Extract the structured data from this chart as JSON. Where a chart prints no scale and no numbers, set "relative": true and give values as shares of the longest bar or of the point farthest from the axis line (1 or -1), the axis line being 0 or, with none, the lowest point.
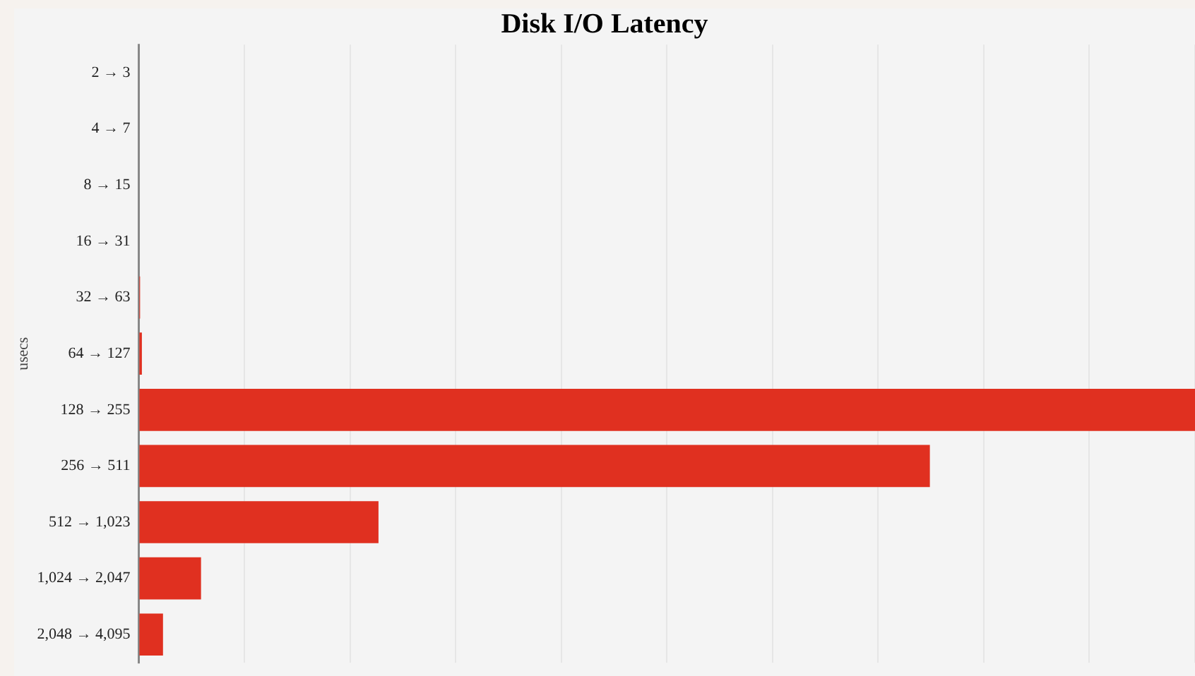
{
  "chart_data": {
    "type": "bar",
    "title": "Disk I/O Latency",
    "ylabel": "usecs",
    "orientation": "horizontal",
    "relative": true,
    "grid": "x",
    "tick_labels": "y",
    "legend": false,
    "categories": [
      "2 → 3",
      "4 → 7",
      "8 → 15",
      "16 → 31",
      "32 → 63",
      "64 → 127",
      "128 → 255",
      "256 → 511",
      "512 → 1,023",
      "1,024 → 2,047",
      "2,048 → 4,095"
    ],
    "values": [
      0,
      0,
      0,
      0,
      0.0013,
      0.003,
      1,
      0.749,
      0.227,
      0.059,
      0.023
    ],
    "color": "#e03020"
  }
}
